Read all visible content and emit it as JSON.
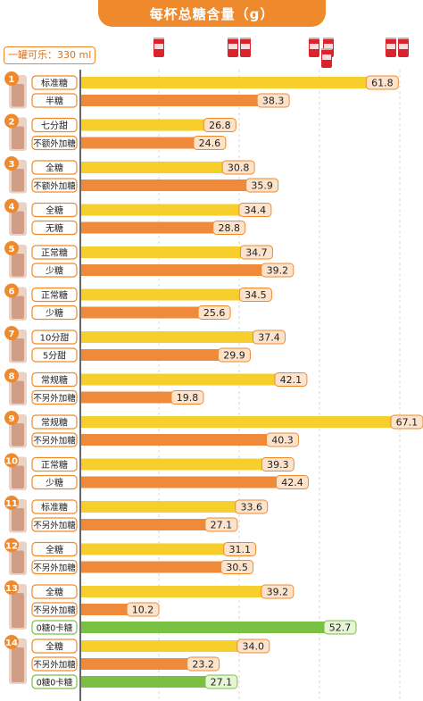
{
  "chart_data": {
    "type": "bar",
    "title": "每杯总糖含量（g）",
    "unit": "g",
    "can_note": "一罐可乐：330 ml",
    "can_gridlines_g": [
      35,
      70,
      105,
      140
    ],
    "xlim": [
      0,
      70
    ],
    "colors": {
      "yellow": "#f7cf2d",
      "orange": "#ef8a3a",
      "green": "#7ac143",
      "accent": "#ef8a2c",
      "label_bg": "#fde3cc",
      "green_label_bg": "#e8f4d6"
    },
    "drinks": [
      {
        "num": "1",
        "bars": [
          {
            "label": "标准糖",
            "value": 61.8,
            "color": "yellow"
          },
          {
            "label": "半糖",
            "value": 38.3,
            "color": "orange"
          }
        ]
      },
      {
        "num": "2",
        "bars": [
          {
            "label": "七分甜",
            "value": 26.8,
            "color": "yellow"
          },
          {
            "label": "不额外加糖",
            "value": 24.6,
            "color": "orange"
          }
        ]
      },
      {
        "num": "3",
        "bars": [
          {
            "label": "全糖",
            "value": 30.8,
            "color": "yellow"
          },
          {
            "label": "不额外加糖",
            "value": 35.9,
            "color": "orange"
          }
        ]
      },
      {
        "num": "4",
        "bars": [
          {
            "label": "全糖",
            "value": 34.4,
            "color": "yellow"
          },
          {
            "label": "无糖",
            "value": 28.8,
            "color": "orange"
          }
        ]
      },
      {
        "num": "5",
        "bars": [
          {
            "label": "正常糖",
            "value": 34.7,
            "color": "yellow"
          },
          {
            "label": "少糖",
            "value": 39.2,
            "color": "orange"
          }
        ]
      },
      {
        "num": "6",
        "bars": [
          {
            "label": "正常糖",
            "value": 34.5,
            "color": "yellow"
          },
          {
            "label": "少糖",
            "value": 25.6,
            "color": "orange"
          }
        ]
      },
      {
        "num": "7",
        "bars": [
          {
            "label": "10分甜",
            "value": 37.4,
            "color": "yellow"
          },
          {
            "label": "5分甜",
            "value": 29.9,
            "color": "orange"
          }
        ]
      },
      {
        "num": "8",
        "bars": [
          {
            "label": "常规糖",
            "value": 42.1,
            "color": "yellow"
          },
          {
            "label": "不另外加糖",
            "value": 19.8,
            "color": "orange"
          }
        ]
      },
      {
        "num": "9",
        "bars": [
          {
            "label": "常规糖",
            "value": 67.1,
            "color": "yellow"
          },
          {
            "label": "不另外加糖",
            "value": 40.3,
            "color": "orange"
          }
        ]
      },
      {
        "num": "10",
        "bars": [
          {
            "label": "正常糖",
            "value": 39.3,
            "color": "yellow"
          },
          {
            "label": "少糖",
            "value": 42.4,
            "color": "orange"
          }
        ]
      },
      {
        "num": "11",
        "bars": [
          {
            "label": "标准糖",
            "value": 33.6,
            "color": "yellow"
          },
          {
            "label": "不另外加糖",
            "value": 27.1,
            "color": "orange"
          }
        ]
      },
      {
        "num": "12",
        "bars": [
          {
            "label": "全糖",
            "value": 31.1,
            "color": "yellow"
          },
          {
            "label": "不另外加糖",
            "value": 30.5,
            "color": "orange"
          }
        ]
      },
      {
        "num": "13",
        "bars": [
          {
            "label": "全糖",
            "value": 39.2,
            "color": "yellow"
          },
          {
            "label": "不另外加糖",
            "value": 10.2,
            "color": "orange"
          },
          {
            "label": "0糖0卡糖",
            "value": 52.7,
            "color": "green"
          }
        ]
      },
      {
        "num": "14",
        "bars": [
          {
            "label": "全糖",
            "value": 34.0,
            "color": "yellow"
          },
          {
            "label": "不另外加糖",
            "value": 23.2,
            "color": "orange"
          },
          {
            "label": "0糖0卡糖",
            "value": 27.1,
            "color": "green"
          }
        ]
      }
    ]
  }
}
